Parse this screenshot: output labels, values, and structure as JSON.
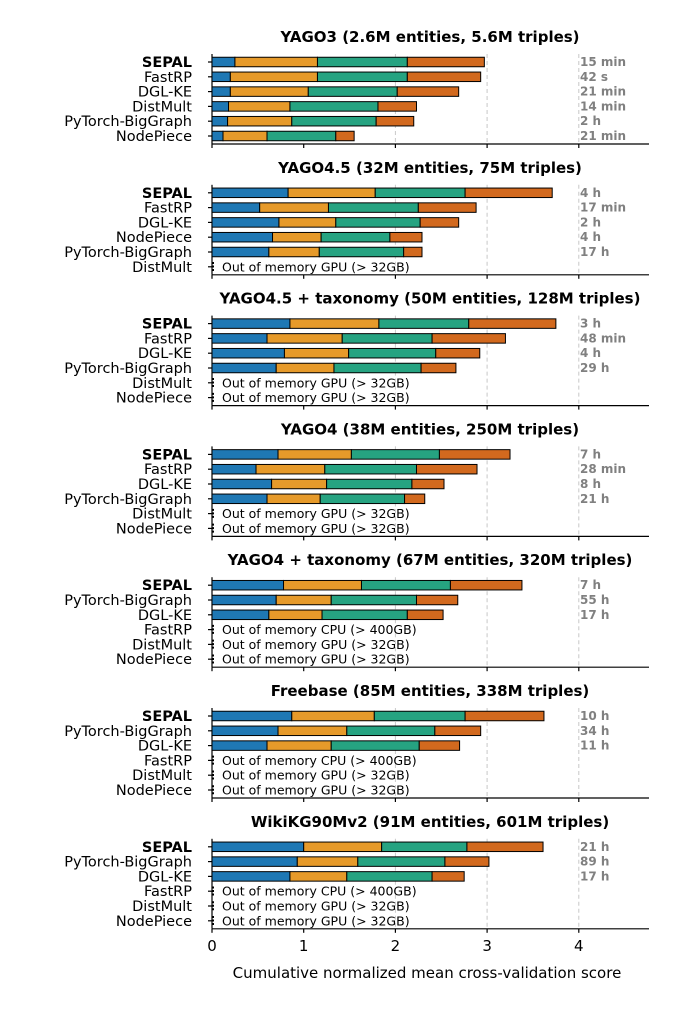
{
  "chart_data": {
    "type": "bar",
    "orientation": "horizontal-stacked",
    "xlabel": "Cumulative normalized mean cross-validation score",
    "xlim": [
      0,
      4.75
    ],
    "xticks": [
      0,
      1,
      2,
      3,
      4
    ],
    "grid_x": [
      2,
      3,
      4
    ],
    "segment_colors": [
      "#1f78b4",
      "#e69a2a",
      "#26a381",
      "#d2691e"
    ],
    "panels": [
      {
        "title": "YAGO3 (2.6M entities, 5.6M triples)",
        "methods": [
          {
            "name": "SEPAL",
            "bold": true,
            "segments": [
              0.25,
              0.9,
              0.98,
              0.84
            ],
            "time": "15 min"
          },
          {
            "name": "FastRP",
            "bold": false,
            "segments": [
              0.2,
              0.95,
              0.98,
              0.8
            ],
            "time": "42 s"
          },
          {
            "name": "DGL-KE",
            "bold": false,
            "segments": [
              0.2,
              0.85,
              0.97,
              0.67
            ],
            "time": "21 min"
          },
          {
            "name": "DistMult",
            "bold": false,
            "segments": [
              0.18,
              0.67,
              0.96,
              0.42
            ],
            "time": "14 min"
          },
          {
            "name": "PyTorch-BigGraph",
            "bold": false,
            "segments": [
              0.17,
              0.7,
              0.92,
              0.41
            ],
            "time": "2 h"
          },
          {
            "name": "NodePiece",
            "bold": false,
            "segments": [
              0.12,
              0.48,
              0.75,
              0.2
            ],
            "time": "21 min"
          }
        ]
      },
      {
        "title": "YAGO4.5 (32M entities, 75M triples)",
        "methods": [
          {
            "name": "SEPAL",
            "bold": true,
            "segments": [
              0.83,
              0.95,
              0.98,
              0.95
            ],
            "time": "4 h"
          },
          {
            "name": "FastRP",
            "bold": false,
            "segments": [
              0.52,
              0.75,
              0.98,
              0.63
            ],
            "time": "17 min"
          },
          {
            "name": "DGL-KE",
            "bold": false,
            "segments": [
              0.73,
              0.62,
              0.92,
              0.42
            ],
            "time": "2 h"
          },
          {
            "name": "NodePiece",
            "bold": false,
            "segments": [
              0.66,
              0.53,
              0.75,
              0.35
            ],
            "time": "4 h"
          },
          {
            "name": "PyTorch-BigGraph",
            "bold": false,
            "segments": [
              0.62,
              0.55,
              0.92,
              0.2
            ],
            "time": "17 h"
          },
          {
            "name": "DistMult",
            "bold": false,
            "oom": "Out of memory GPU (> 32GB)"
          }
        ]
      },
      {
        "title": "YAGO4.5 + taxonomy (50M entities, 128M triples)",
        "methods": [
          {
            "name": "SEPAL",
            "bold": true,
            "segments": [
              0.85,
              0.97,
              0.98,
              0.95
            ],
            "time": "3 h"
          },
          {
            "name": "FastRP",
            "bold": false,
            "segments": [
              0.6,
              0.82,
              0.98,
              0.8
            ],
            "time": "48 min"
          },
          {
            "name": "DGL-KE",
            "bold": false,
            "segments": [
              0.79,
              0.7,
              0.95,
              0.48
            ],
            "time": "4 h"
          },
          {
            "name": "PyTorch-BigGraph",
            "bold": false,
            "segments": [
              0.7,
              0.63,
              0.95,
              0.38
            ],
            "time": "29 h"
          },
          {
            "name": "DistMult",
            "bold": false,
            "oom": "Out of memory GPU (> 32GB)"
          },
          {
            "name": "NodePiece",
            "bold": false,
            "oom": "Out of memory GPU (> 32GB)"
          }
        ]
      },
      {
        "title": "YAGO4 (38M entities, 250M triples)",
        "methods": [
          {
            "name": "SEPAL",
            "bold": true,
            "segments": [
              0.72,
              0.8,
              0.96,
              0.77
            ],
            "time": "7 h"
          },
          {
            "name": "FastRP",
            "bold": false,
            "segments": [
              0.48,
              0.75,
              1.0,
              0.66
            ],
            "time": "28 min"
          },
          {
            "name": "DGL-KE",
            "bold": false,
            "segments": [
              0.65,
              0.6,
              0.93,
              0.35
            ],
            "time": "8 h"
          },
          {
            "name": "PyTorch-BigGraph",
            "bold": false,
            "segments": [
              0.6,
              0.58,
              0.92,
              0.22
            ],
            "time": "21 h"
          },
          {
            "name": "DistMult",
            "bold": false,
            "oom": "Out of memory GPU (> 32GB)"
          },
          {
            "name": "NodePiece",
            "bold": false,
            "oom": "Out of memory GPU (> 32GB)"
          }
        ]
      },
      {
        "title": "YAGO4 + taxonomy (67M entities, 320M triples)",
        "methods": [
          {
            "name": "SEPAL",
            "bold": true,
            "segments": [
              0.78,
              0.85,
              0.97,
              0.78
            ],
            "time": "7 h"
          },
          {
            "name": "PyTorch-BigGraph",
            "bold": false,
            "segments": [
              0.7,
              0.6,
              0.93,
              0.45
            ],
            "time": "55 h"
          },
          {
            "name": "DGL-KE",
            "bold": false,
            "segments": [
              0.62,
              0.58,
              0.93,
              0.39
            ],
            "time": "17 h"
          },
          {
            "name": "FastRP",
            "bold": false,
            "oom": "Out of memory CPU (> 400GB)"
          },
          {
            "name": "DistMult",
            "bold": false,
            "oom": "Out of memory GPU (> 32GB)"
          },
          {
            "name": "NodePiece",
            "bold": false,
            "oom": "Out of memory GPU (> 32GB)"
          }
        ]
      },
      {
        "title": "Freebase (85M entities, 338M triples)",
        "methods": [
          {
            "name": "SEPAL",
            "bold": true,
            "segments": [
              0.87,
              0.9,
              0.99,
              0.86
            ],
            "time": "10 h"
          },
          {
            "name": "PyTorch-BigGraph",
            "bold": false,
            "segments": [
              0.72,
              0.75,
              0.96,
              0.5
            ],
            "time": "34 h"
          },
          {
            "name": "DGL-KE",
            "bold": false,
            "segments": [
              0.6,
              0.7,
              0.96,
              0.44
            ],
            "time": "11 h"
          },
          {
            "name": "FastRP",
            "bold": false,
            "oom": "Out of memory CPU (> 400GB)"
          },
          {
            "name": "DistMult",
            "bold": false,
            "oom": "Out of memory GPU (> 32GB)"
          },
          {
            "name": "NodePiece",
            "bold": false,
            "oom": "Out of memory GPU (> 32GB)"
          }
        ]
      },
      {
        "title": "WikiKG90Mv2 (91M entities, 601M triples)",
        "methods": [
          {
            "name": "SEPAL",
            "bold": true,
            "segments": [
              1.0,
              0.85,
              0.93,
              0.83
            ],
            "time": "21 h"
          },
          {
            "name": "PyTorch-BigGraph",
            "bold": false,
            "segments": [
              0.93,
              0.66,
              0.95,
              0.48
            ],
            "time": "89 h"
          },
          {
            "name": "DGL-KE",
            "bold": false,
            "segments": [
              0.85,
              0.62,
              0.93,
              0.35
            ],
            "time": "17 h"
          },
          {
            "name": "FastRP",
            "bold": false,
            "oom": "Out of memory CPU (> 400GB)"
          },
          {
            "name": "DistMult",
            "bold": false,
            "oom": "Out of memory GPU (> 32GB)"
          },
          {
            "name": "NodePiece",
            "bold": false,
            "oom": "Out of memory GPU (> 32GB)"
          }
        ]
      }
    ]
  }
}
